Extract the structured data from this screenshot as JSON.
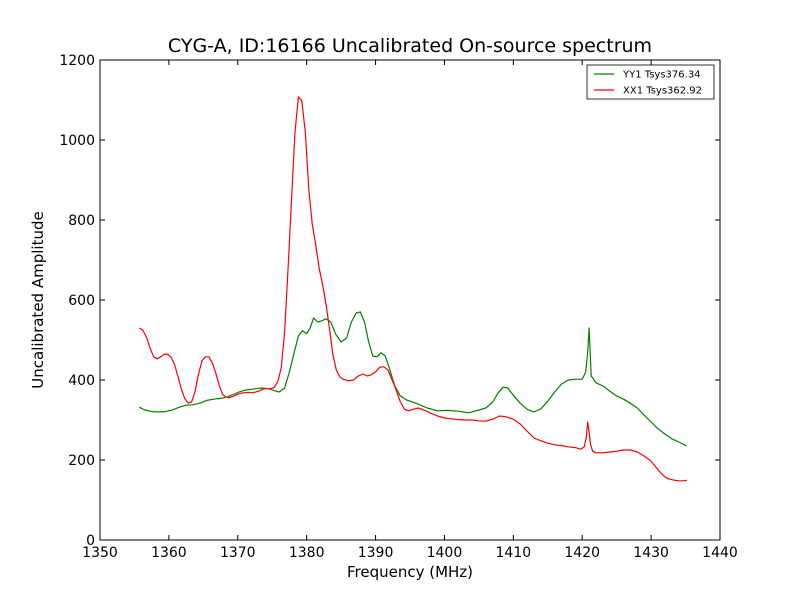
{
  "chart_data": {
    "type": "line",
    "title": "CYG-A, ID:16166 Uncalibrated On-source spectrum",
    "xlabel": "Frequency (MHz)",
    "ylabel": "Uncalibrated Amplitude",
    "xlim": [
      1350,
      1440
    ],
    "ylim": [
      0,
      1200
    ],
    "xticks": [
      1350,
      1360,
      1370,
      1380,
      1390,
      1400,
      1410,
      1420,
      1430,
      1440
    ],
    "yticks": [
      0,
      200,
      400,
      600,
      800,
      1000,
      1200
    ],
    "grid": false,
    "legend_position": "top-right",
    "series": [
      {
        "name": "YY1 Tsys376.34",
        "color": "#008000",
        "x": [
          1355.7,
          1356.5,
          1357.5,
          1358.5,
          1359.5,
          1360.5,
          1361.5,
          1362.5,
          1363.5,
          1364.5,
          1365.5,
          1366.5,
          1367.5,
          1368.5,
          1369.5,
          1370.5,
          1371.5,
          1372.5,
          1373.5,
          1374.5,
          1375.2,
          1376.0,
          1376.8,
          1377.5,
          1378.2,
          1378.8,
          1379.4,
          1380.0,
          1380.5,
          1381.0,
          1381.6,
          1382.2,
          1382.8,
          1383.5,
          1384.2,
          1385.0,
          1385.8,
          1386.5,
          1387.2,
          1387.8,
          1388.4,
          1389.0,
          1389.6,
          1390.2,
          1390.8,
          1391.4,
          1392.0,
          1392.8,
          1393.6,
          1394.5,
          1396.0,
          1397.5,
          1399.0,
          1400.5,
          1402.0,
          1403.5,
          1405.0,
          1406.0,
          1407.0,
          1407.8,
          1408.5,
          1409.2,
          1410.0,
          1411.0,
          1412.0,
          1413.0,
          1414.0,
          1415.0,
          1416.0,
          1417.0,
          1418.0,
          1419.0,
          1420.0,
          1420.5,
          1420.8,
          1421.0,
          1421.3,
          1422.0,
          1423.0,
          1424.0,
          1425.0,
          1426.0,
          1427.0,
          1428.0,
          1429.0,
          1430.0,
          1431.0,
          1432.0,
          1433.0,
          1434.0,
          1435.2
        ],
        "values": [
          332,
          325,
          321,
          320,
          321,
          325,
          332,
          337,
          338,
          342,
          349,
          352,
          354,
          358,
          365,
          372,
          376,
          378,
          380,
          378,
          374,
          370,
          380,
          420,
          470,
          510,
          523,
          516,
          530,
          555,
          545,
          548,
          553,
          545,
          515,
          495,
          505,
          545,
          568,
          570,
          545,
          495,
          460,
          458,
          468,
          460,
          430,
          385,
          360,
          350,
          341,
          330,
          323,
          324,
          322,
          318,
          325,
          330,
          345,
          368,
          382,
          380,
          362,
          342,
          327,
          320,
          328,
          347,
          370,
          390,
          400,
          402,
          402,
          420,
          470,
          530,
          410,
          393,
          385,
          372,
          360,
          352,
          342,
          330,
          312,
          295,
          278,
          265,
          253,
          245,
          235
        ]
      },
      {
        "name": "XX1 Tsys362.92",
        "color": "#ff0000",
        "x": [
          1355.7,
          1356.2,
          1356.8,
          1357.3,
          1357.8,
          1358.3,
          1358.8,
          1359.3,
          1359.8,
          1360.3,
          1360.8,
          1361.3,
          1361.8,
          1362.3,
          1362.8,
          1363.3,
          1363.8,
          1364.3,
          1364.8,
          1365.3,
          1365.8,
          1366.3,
          1366.8,
          1367.3,
          1367.8,
          1368.3,
          1368.8,
          1369.3,
          1369.8,
          1370.3,
          1370.8,
          1371.5,
          1372.2,
          1373.0,
          1373.8,
          1374.5,
          1375.2,
          1375.8,
          1376.3,
          1376.8,
          1377.3,
          1377.8,
          1378.3,
          1378.8,
          1379.3,
          1379.8,
          1380.3,
          1380.8,
          1381.3,
          1381.8,
          1382.3,
          1382.8,
          1383.3,
          1383.8,
          1384.3,
          1384.8,
          1385.3,
          1386.0,
          1386.8,
          1387.5,
          1388.2,
          1388.8,
          1389.4,
          1390.0,
          1390.6,
          1391.2,
          1391.8,
          1392.4,
          1393.0,
          1393.6,
          1394.2,
          1394.8,
          1395.5,
          1396.2,
          1397.0,
          1398.0,
          1399.0,
          1400.0,
          1401.0,
          1402.0,
          1403.0,
          1404.0,
          1405.0,
          1406.0,
          1407.0,
          1408.0,
          1409.0,
          1410.0,
          1411.0,
          1412.0,
          1413.0,
          1414.0,
          1415.0,
          1416.0,
          1417.0,
          1418.0,
          1419.0,
          1419.8,
          1420.3,
          1420.6,
          1420.8,
          1421.0,
          1421.2,
          1421.5,
          1422.0,
          1423.0,
          1424.0,
          1425.0,
          1426.0,
          1427.0,
          1428.0,
          1429.0,
          1430.0,
          1430.5,
          1431.0,
          1431.5,
          1432.0,
          1432.5,
          1433.0,
          1433.5,
          1434.0,
          1434.5,
          1435.2
        ],
        "values": [
          530,
          525,
          505,
          478,
          458,
          453,
          458,
          464,
          465,
          457,
          440,
          410,
          378,
          354,
          342,
          345,
          372,
          415,
          448,
          458,
          458,
          443,
          418,
          387,
          364,
          357,
          356,
          359,
          363,
          366,
          368,
          369,
          368,
          372,
          378,
          378,
          380,
          395,
          430,
          520,
          680,
          850,
          1020,
          1108,
          1098,
          1020,
          880,
          790,
          740,
          680,
          640,
          590,
          530,
          465,
          425,
          408,
          402,
          398,
          400,
          410,
          415,
          410,
          413,
          420,
          432,
          433,
          425,
          400,
          375,
          345,
          327,
          323,
          327,
          330,
          325,
          317,
          310,
          305,
          303,
          301,
          300,
          300,
          298,
          297,
          302,
          310,
          308,
          302,
          290,
          272,
          255,
          248,
          242,
          238,
          236,
          233,
          231,
          227,
          233,
          258,
          295,
          270,
          240,
          222,
          218,
          218,
          220,
          222,
          225,
          225,
          220,
          210,
          197,
          186,
          176,
          166,
          158,
          153,
          151,
          149,
          148,
          148,
          149
        ]
      }
    ]
  }
}
